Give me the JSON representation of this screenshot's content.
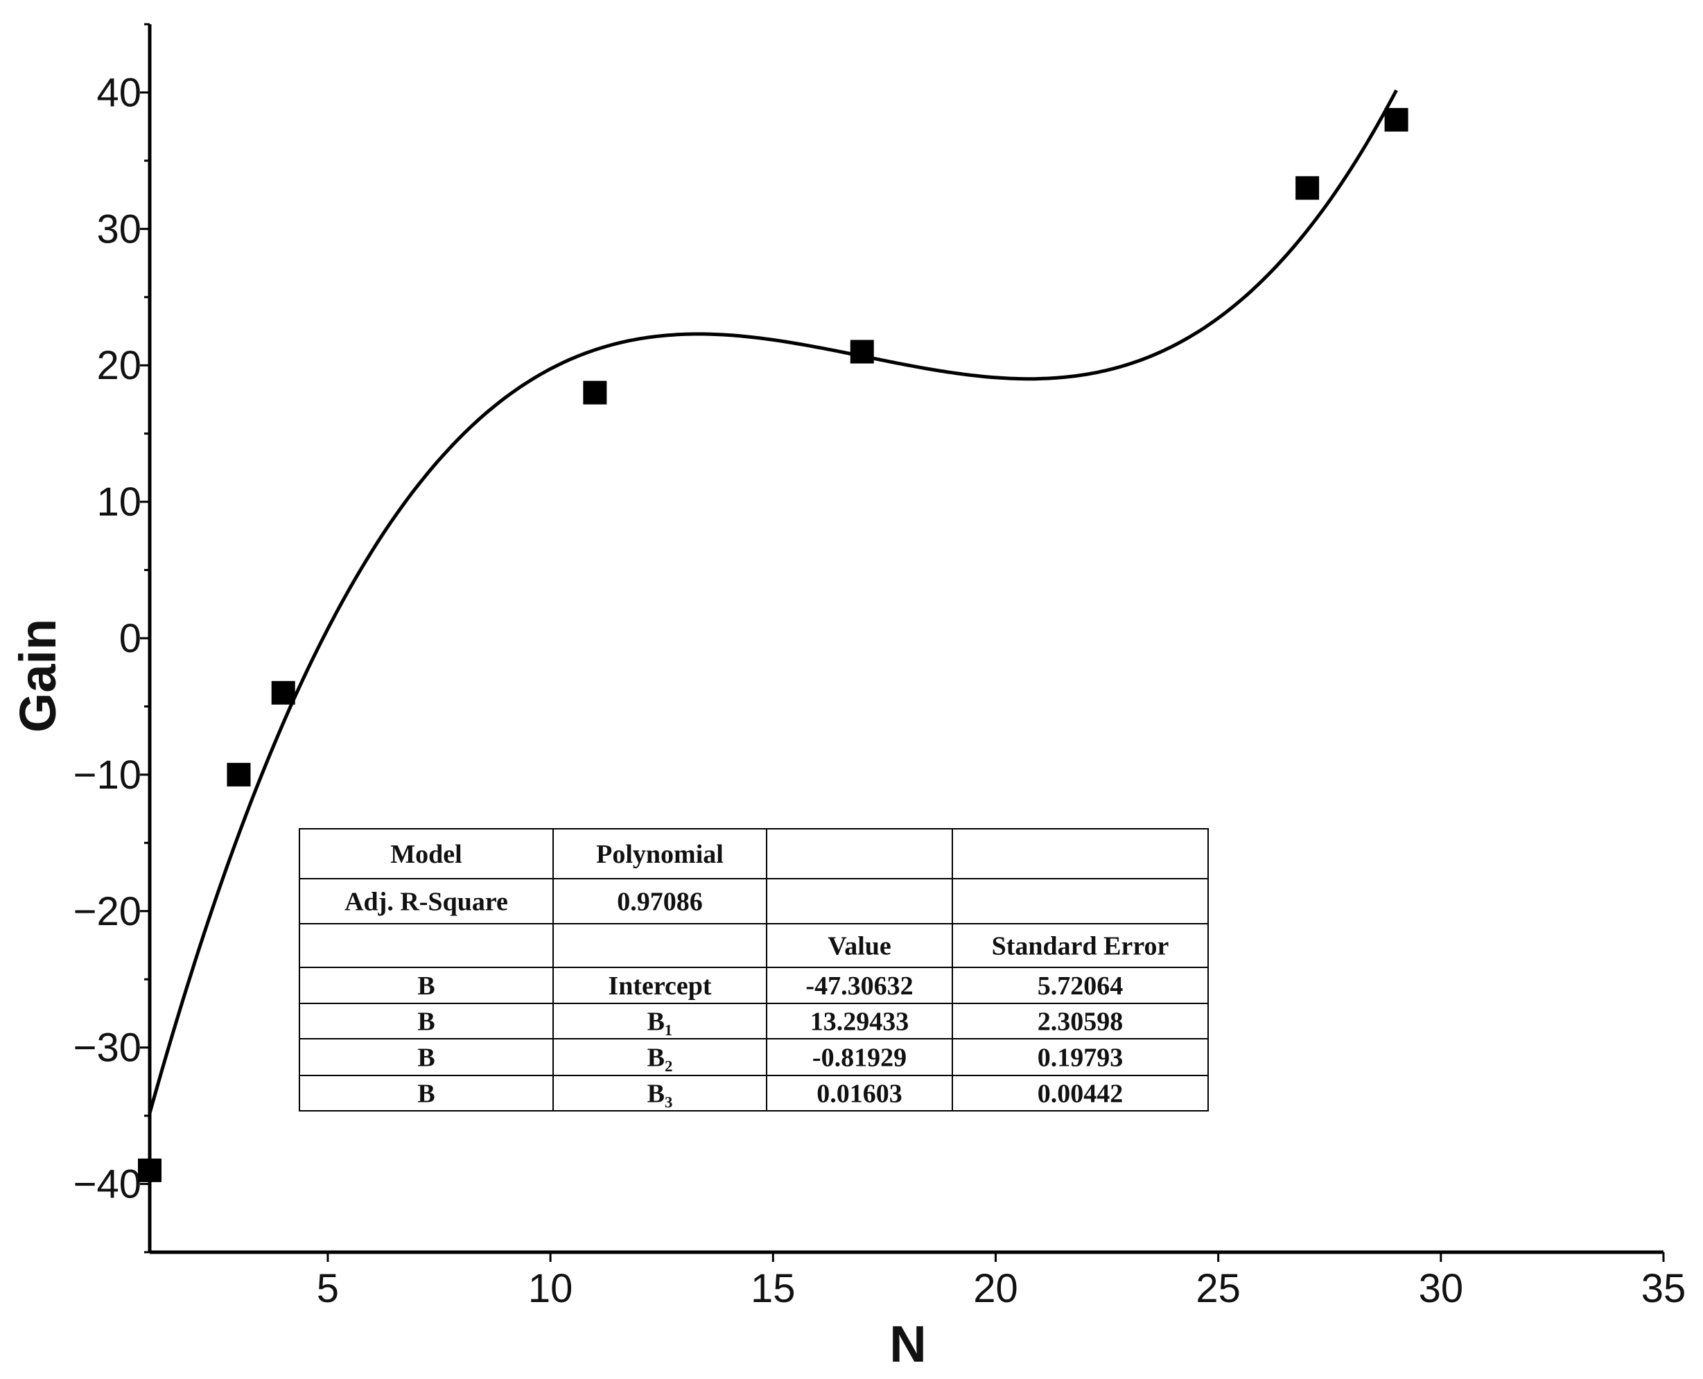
{
  "chart_data": {
    "type": "scatter",
    "xlabel": "N",
    "ylabel": "Gain",
    "xlim": [
      1,
      35
    ],
    "ylim": [
      -45,
      45
    ],
    "x_ticks": [
      5,
      10,
      15,
      20,
      25,
      30,
      35
    ],
    "y_ticks": [
      40,
      30,
      20,
      10,
      0,
      -10,
      -20,
      -30,
      -40
    ],
    "grid": false,
    "series": [
      {
        "kind": "points",
        "marker": "square",
        "x": [
          1,
          3,
          4,
          11,
          17,
          27,
          29
        ],
        "y": [
          -39,
          -10,
          -4,
          18,
          21,
          33,
          38
        ]
      },
      {
        "kind": "fit-line",
        "model": "polynomial",
        "coefficients": [
          -47.30632,
          13.29433,
          -0.81929,
          0.01603
        ],
        "x_range": [
          1,
          29
        ]
      }
    ],
    "fit_table": {
      "rows": [
        [
          "Model",
          "Polynomial",
          "",
          ""
        ],
        [
          "Adj. R-Square",
          "0.97086",
          "",
          ""
        ],
        [
          "",
          "",
          "Value",
          "Standard Error"
        ],
        [
          "B",
          "Intercept",
          "-47.30632",
          "5.72064"
        ],
        [
          "B",
          "B₁",
          "13.29433",
          "2.30598"
        ],
        [
          "B",
          "B₂",
          "-0.81929",
          "0.19793"
        ],
        [
          "B",
          "B₃",
          "0.01603",
          "0.00442"
        ]
      ]
    }
  }
}
